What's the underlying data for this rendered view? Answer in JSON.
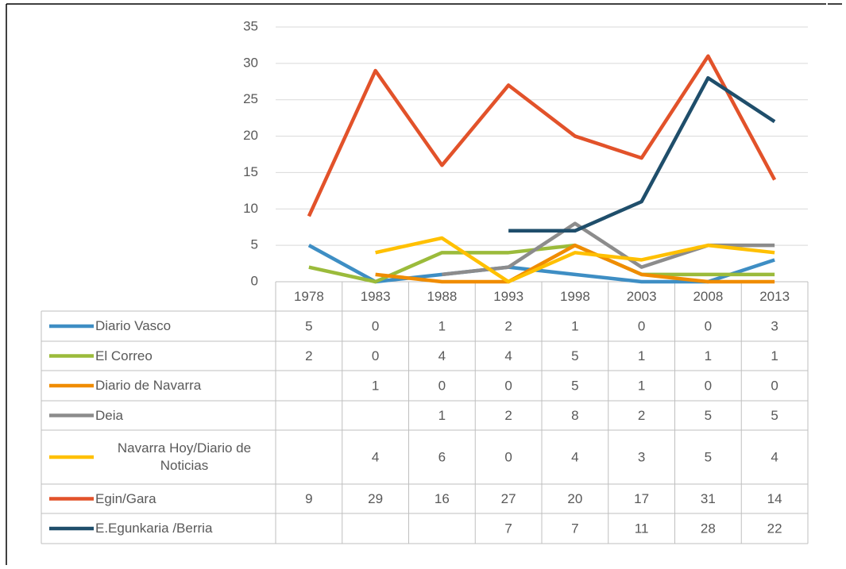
{
  "chart_data": {
    "type": "line",
    "categories": [
      "1978",
      "1983",
      "1988",
      "1993",
      "1998",
      "2003",
      "2008",
      "2013"
    ],
    "ylim": [
      0,
      35
    ],
    "yticks": [
      0,
      5,
      10,
      15,
      20,
      25,
      30,
      35
    ],
    "grid": true,
    "series": [
      {
        "name": "Diario Vasco",
        "color": "#3e8ec4",
        "values": [
          5,
          0,
          1,
          2,
          1,
          0,
          0,
          3
        ]
      },
      {
        "name": "El Correo",
        "color": "#9bbb3b",
        "values": [
          2,
          0,
          4,
          4,
          5,
          1,
          1,
          1
        ]
      },
      {
        "name": "Diario de Navarra",
        "color": "#f08c00",
        "values": [
          null,
          1,
          0,
          0,
          5,
          1,
          0,
          0
        ]
      },
      {
        "name": "Deia",
        "color": "#8c8c8c",
        "values": [
          null,
          null,
          1,
          2,
          8,
          2,
          5,
          5
        ]
      },
      {
        "name": "Navarra Hoy/Diario de Noticias",
        "color": "#ffc000",
        "values": [
          null,
          4,
          6,
          0,
          4,
          3,
          5,
          4
        ]
      },
      {
        "name": "Egin/Gara",
        "color": "#e2522a",
        "values": [
          9,
          29,
          16,
          27,
          20,
          17,
          31,
          14
        ]
      },
      {
        "name": "E.Egunkaria /Berria",
        "color": "#1f4e6b",
        "values": [
          null,
          null,
          null,
          7,
          7,
          11,
          28,
          22
        ]
      }
    ]
  }
}
